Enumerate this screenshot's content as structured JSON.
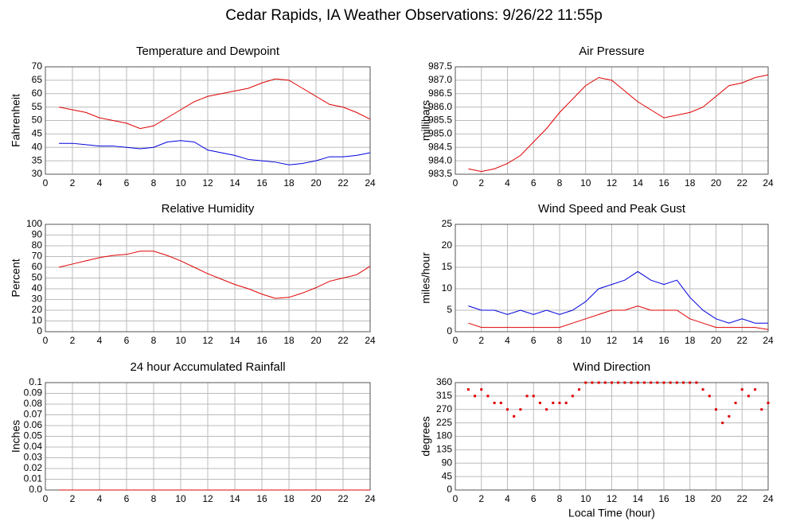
{
  "title": "Cedar Rapids, IA Weather Observations: 9/26/22 11:55p",
  "chart_data": [
    {
      "type": "line",
      "title": "Temperature and Dewpoint",
      "y_label": "Fahrenheit",
      "x": [
        1,
        2,
        3,
        4,
        5,
        6,
        7,
        8,
        9,
        10,
        11,
        12,
        13,
        14,
        15,
        16,
        17,
        18,
        19,
        20,
        21,
        22,
        23,
        24
      ],
      "series": [
        {
          "color": "#e00000",
          "values": [
            55,
            54,
            53,
            51,
            50,
            49,
            47,
            48,
            51,
            54,
            57,
            59,
            60,
            61,
            62,
            64,
            65.5,
            65,
            62,
            59,
            56,
            55,
            53,
            50.5
          ]
        },
        {
          "color": "#0000e0",
          "values": [
            41.5,
            41.5,
            41,
            40.5,
            40.5,
            40,
            39.5,
            40,
            42,
            42.5,
            42,
            39,
            38,
            37,
            35.5,
            35,
            34.5,
            33.5,
            34,
            35,
            36.5,
            36.5,
            37,
            38
          ]
        }
      ],
      "xlim": [
        0,
        24
      ],
      "xticks": [
        0,
        2,
        4,
        6,
        8,
        10,
        12,
        14,
        16,
        18,
        20,
        22,
        24
      ],
      "ylim": [
        30,
        70
      ],
      "yticks": [
        30,
        35,
        40,
        45,
        50,
        55,
        60,
        65,
        70
      ],
      "grid": true
    },
    {
      "type": "line",
      "title": "Air Pressure",
      "y_label": "millibars",
      "x": [
        1,
        2,
        3,
        4,
        5,
        6,
        7,
        8,
        9,
        10,
        11,
        12,
        13,
        14,
        15,
        16,
        17,
        18,
        19,
        20,
        21,
        22,
        23,
        24
      ],
      "series": [
        {
          "color": "#e00000",
          "values": [
            983.7,
            983.6,
            983.7,
            983.9,
            984.2,
            984.7,
            985.2,
            985.8,
            986.3,
            986.8,
            987.1,
            987.0,
            986.6,
            986.2,
            985.9,
            985.6,
            985.7,
            985.8,
            986.0,
            986.4,
            986.8,
            986.9,
            987.1,
            987.2
          ]
        }
      ],
      "xlim": [
        0,
        24
      ],
      "xticks": [
        0,
        2,
        4,
        6,
        8,
        10,
        12,
        14,
        16,
        18,
        20,
        22,
        24
      ],
      "ylim": [
        983.5,
        987.5
      ],
      "yticks": [
        983.5,
        {
          "value": 984,
          "label": "984.0"
        },
        984.5,
        {
          "value": 985,
          "label": "985.0"
        },
        985.5,
        {
          "value": 986,
          "label": "986.0"
        },
        986.5,
        {
          "value": 987,
          "label": "987.0"
        },
        987.5
      ],
      "grid": true
    },
    {
      "type": "line",
      "title": "Relative Humidity",
      "y_label": "Percent",
      "x": [
        1,
        2,
        3,
        4,
        5,
        6,
        7,
        8,
        9,
        10,
        11,
        12,
        13,
        14,
        15,
        16,
        17,
        18,
        19,
        20,
        21,
        22,
        23,
        24
      ],
      "series": [
        {
          "color": "#e00000",
          "values": [
            60,
            63,
            66,
            69,
            71,
            72,
            75,
            75,
            71,
            66,
            60,
            54,
            49,
            44,
            40,
            35,
            31,
            32,
            36,
            41,
            47,
            50,
            53,
            61
          ]
        }
      ],
      "xlim": [
        0,
        24
      ],
      "xticks": [
        0,
        2,
        4,
        6,
        8,
        10,
        12,
        14,
        16,
        18,
        20,
        22,
        24
      ],
      "ylim": [
        0,
        100
      ],
      "yticks": [
        0,
        10,
        20,
        30,
        40,
        50,
        60,
        70,
        80,
        90,
        100
      ],
      "grid": true
    },
    {
      "type": "line",
      "title": "Wind Speed and Peak Gust",
      "y_label": "miles/hour",
      "x": [
        1,
        2,
        3,
        4,
        5,
        6,
        7,
        8,
        9,
        10,
        11,
        12,
        13,
        14,
        15,
        16,
        17,
        18,
        19,
        20,
        21,
        22,
        23,
        24
      ],
      "series": [
        {
          "color": "#0000e0",
          "values": [
            6,
            5,
            5,
            4,
            5,
            4,
            5,
            4,
            5,
            7,
            10,
            11,
            12,
            14,
            12,
            11,
            12,
            8,
            5,
            3,
            2,
            3,
            2,
            2
          ]
        },
        {
          "color": "#e00000",
          "values": [
            2,
            1,
            1,
            1,
            1,
            1,
            1,
            1,
            2,
            3,
            4,
            5,
            5,
            6,
            5,
            5,
            5,
            3,
            2,
            1,
            1,
            1,
            1,
            0.5
          ]
        }
      ],
      "xlim": [
        0,
        24
      ],
      "xticks": [
        0,
        2,
        4,
        6,
        8,
        10,
        12,
        14,
        16,
        18,
        20,
        22,
        24
      ],
      "ylim": [
        0,
        25
      ],
      "yticks": [
        0,
        5,
        10,
        15,
        20,
        25
      ],
      "grid": true
    },
    {
      "type": "line",
      "title": "24 hour Accumulated Rainfall",
      "y_label": "Inches",
      "x": [
        1,
        2,
        3,
        4,
        5,
        6,
        7,
        8,
        9,
        10,
        11,
        12,
        13,
        14,
        15,
        16,
        17,
        18,
        19,
        20,
        21,
        22,
        23,
        24
      ],
      "series": [
        {
          "color": "#e00000",
          "values": [
            0,
            0,
            0,
            0,
            0,
            0,
            0,
            0,
            0,
            0,
            0,
            0,
            0,
            0,
            0,
            0,
            0,
            0,
            0,
            0,
            0,
            0,
            0,
            0
          ]
        }
      ],
      "xlim": [
        0,
        24
      ],
      "xticks": [
        0,
        2,
        4,
        6,
        8,
        10,
        12,
        14,
        16,
        18,
        20,
        22,
        24
      ],
      "ylim": [
        0,
        0.1
      ],
      "yticks": [
        {
          "value": 0,
          "label": "0.0"
        },
        0.01,
        0.02,
        0.03,
        0.04,
        0.05,
        0.06,
        0.07,
        0.08,
        0.09,
        0.1
      ],
      "grid": true
    },
    {
      "type": "scatter",
      "title": "Wind Direction",
      "y_label": "degrees",
      "x_label": "Local Time (hour)",
      "x": [
        1,
        1.5,
        2,
        2.5,
        3,
        3.5,
        4,
        4.5,
        5,
        5.5,
        6,
        6.5,
        7,
        7.5,
        8,
        8.5,
        9,
        9.5,
        10,
        10.5,
        11,
        11.5,
        12,
        12.5,
        13,
        13.5,
        14,
        14.5,
        15,
        15.5,
        16,
        16.5,
        17,
        17.5,
        18,
        18.5,
        19,
        19.5,
        20,
        20.5,
        21,
        21.5,
        22,
        22.5,
        23,
        23.5,
        24
      ],
      "series": [
        {
          "color": "#e00000",
          "values": [
            337,
            315,
            337,
            315,
            292,
            292,
            270,
            247,
            270,
            315,
            315,
            292,
            270,
            292,
            292,
            292,
            315,
            337,
            360,
            360,
            360,
            360,
            360,
            360,
            360,
            360,
            360,
            360,
            360,
            360,
            360,
            360,
            360,
            360,
            360,
            360,
            337,
            315,
            270,
            225,
            247,
            292,
            337,
            315,
            337,
            270,
            292
          ]
        }
      ],
      "xlim": [
        0,
        24
      ],
      "xticks": [
        0,
        2,
        4,
        6,
        8,
        10,
        12,
        14,
        16,
        18,
        20,
        22,
        24
      ],
      "ylim": [
        0,
        360
      ],
      "yticks": [
        0,
        45,
        90,
        135,
        180,
        225,
        270,
        315,
        360
      ],
      "grid": true
    }
  ]
}
